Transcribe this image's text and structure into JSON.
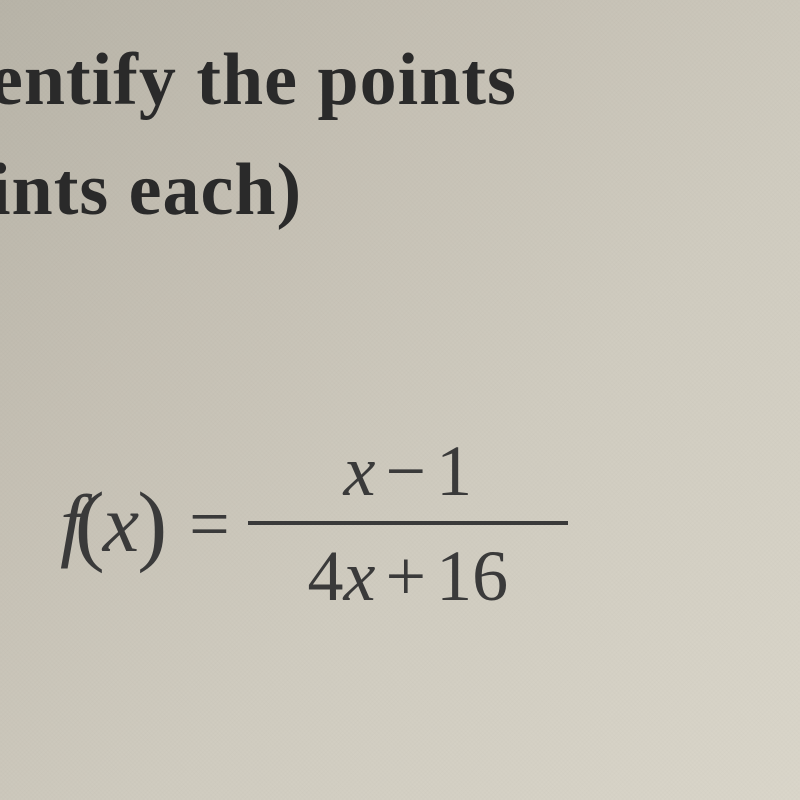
{
  "text": {
    "line1": "entify the points",
    "line2": "ints each)"
  },
  "equation": {
    "func_letter": "f",
    "paren_open": "(",
    "func_var": "x",
    "paren_close": ")",
    "equals": "=",
    "numerator": {
      "var": "x",
      "op": "−",
      "const": "1"
    },
    "denominator": {
      "coef": "4",
      "var": "x",
      "op": "+",
      "const": "16"
    }
  },
  "style": {
    "background_gradient": [
      "#b8b4a8",
      "#c5c0b4",
      "#d0ccc0",
      "#dad6ca"
    ],
    "text_color": "#2a2a2a",
    "equation_color": "#3a3a3a",
    "heading_fontsize": 74,
    "equation_fontsize": 72,
    "func_notation_fontsize": 82,
    "paren_fontsize": 90,
    "frac_line_height": 4,
    "frac_line_min_width": 320,
    "font_family": "Times New Roman"
  }
}
